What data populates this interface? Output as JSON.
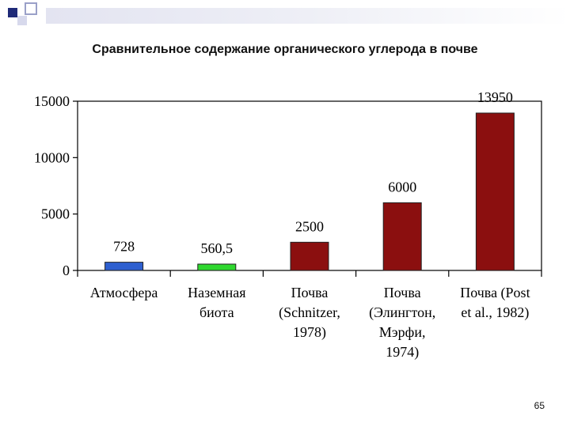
{
  "slide": {
    "title": "Сравнительное содержание органического углерода в почве",
    "page_number": "65"
  },
  "chart_data": {
    "type": "bar",
    "categories": [
      [
        "Атмосфера"
      ],
      [
        "Наземная",
        "биота"
      ],
      [
        "Почва",
        "(Schnitzer,",
        "1978)"
      ],
      [
        "Почва",
        "(Элингтон,",
        "Мэрфи,",
        "1974)"
      ],
      [
        "Почва (Post",
        "et al., 1982)"
      ]
    ],
    "values": [
      728,
      560.5,
      2500,
      6000,
      13950
    ],
    "value_labels": [
      "728",
      "560,5",
      "2500",
      "6000",
      "13950"
    ],
    "colors": [
      "#2e5fcf",
      "#2fd82f",
      "#8b0f0f",
      "#8b0f0f",
      "#8b0f0f"
    ],
    "ylim": [
      0,
      15000
    ],
    "yticks": [
      0,
      5000,
      10000,
      15000
    ],
    "grid": false
  }
}
